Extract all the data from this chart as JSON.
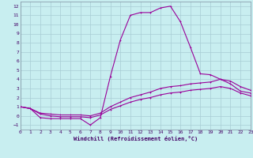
{
  "title": "",
  "xlabel": "Windchill (Refroidissement éolien,°C)",
  "bg_color": "#c8eef0",
  "grid_color": "#a8ccd4",
  "line_color": "#990099",
  "xlim": [
    0,
    23
  ],
  "ylim": [
    -1.5,
    12.5
  ],
  "xticks": [
    0,
    1,
    2,
    3,
    4,
    5,
    6,
    7,
    8,
    9,
    10,
    11,
    12,
    13,
    14,
    15,
    16,
    17,
    18,
    19,
    20,
    21,
    22,
    23
  ],
  "yticks": [
    -1,
    0,
    1,
    2,
    3,
    4,
    5,
    6,
    7,
    8,
    9,
    10,
    11,
    12
  ],
  "line1_x": [
    0,
    1,
    2,
    3,
    4,
    5,
    6,
    7,
    8,
    9,
    10,
    11,
    12,
    13,
    14,
    15,
    16,
    17,
    18,
    19,
    20,
    21,
    22,
    23
  ],
  "line1_y": [
    1.0,
    0.8,
    -0.2,
    -0.3,
    -0.3,
    -0.3,
    -0.3,
    -1.0,
    -0.2,
    4.3,
    8.3,
    11.0,
    11.3,
    11.3,
    11.8,
    12.0,
    10.3,
    7.5,
    4.6,
    4.5,
    4.0,
    3.5,
    2.7,
    2.5
  ],
  "line2_x": [
    0,
    1,
    2,
    3,
    4,
    5,
    6,
    7,
    8,
    9,
    10,
    11,
    12,
    13,
    14,
    15,
    16,
    17,
    18,
    19,
    20,
    21,
    22,
    23
  ],
  "line2_y": [
    1.0,
    0.8,
    0.3,
    0.2,
    0.1,
    0.1,
    0.1,
    0.0,
    0.3,
    1.0,
    1.5,
    2.0,
    2.3,
    2.6,
    3.0,
    3.2,
    3.3,
    3.5,
    3.6,
    3.7,
    4.0,
    3.8,
    3.2,
    2.8
  ],
  "line3_x": [
    0,
    1,
    2,
    3,
    4,
    5,
    6,
    7,
    8,
    9,
    10,
    11,
    12,
    13,
    14,
    15,
    16,
    17,
    18,
    19,
    20,
    21,
    22,
    23
  ],
  "line3_y": [
    1.0,
    0.8,
    0.2,
    0.0,
    -0.1,
    -0.1,
    -0.1,
    -0.2,
    0.1,
    0.7,
    1.1,
    1.5,
    1.8,
    2.0,
    2.3,
    2.5,
    2.6,
    2.8,
    2.9,
    3.0,
    3.2,
    3.0,
    2.5,
    2.2
  ],
  "tick_fontsize": 4.5,
  "xlabel_fontsize": 5.0,
  "marker_size": 1.8,
  "line_width": 0.8
}
